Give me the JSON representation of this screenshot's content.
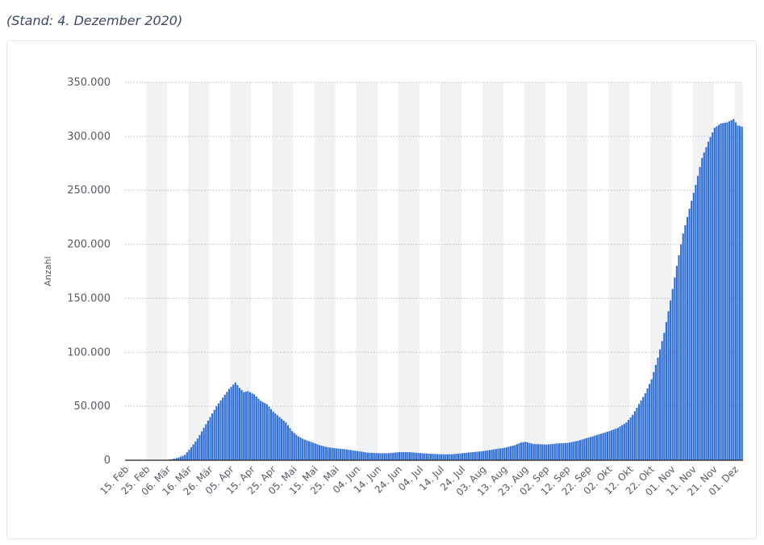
{
  "subtitle": "(Stand: 4. Dezember 2020)",
  "colors": {
    "bar": "#2f6fd6",
    "grid": "#b9bec5",
    "band": "#f1f2f4",
    "axis": "#222222"
  },
  "chart_data": {
    "type": "bar",
    "title": "",
    "xlabel": "",
    "ylabel": "Anzahl",
    "ylim": [
      0,
      350000
    ],
    "yticks": [
      {
        "value": 0,
        "label": "0"
      },
      {
        "value": 50000,
        "label": "50.000"
      },
      {
        "value": 100000,
        "label": "100.000"
      },
      {
        "value": 150000,
        "label": "150.000"
      },
      {
        "value": 200000,
        "label": "200.000"
      },
      {
        "value": 250000,
        "label": "250.000"
      },
      {
        "value": 300000,
        "label": "300.000"
      },
      {
        "value": 350000,
        "label": "350.000"
      }
    ],
    "grid": true,
    "x_start": "2020-02-15",
    "x_end": "2020-12-04",
    "xticks": [
      {
        "date": "2020-02-15",
        "label": "15. Feb"
      },
      {
        "date": "2020-02-25",
        "label": "25. Feb"
      },
      {
        "date": "2020-03-06",
        "label": "06. Mär"
      },
      {
        "date": "2020-03-16",
        "label": "16. Mär"
      },
      {
        "date": "2020-03-26",
        "label": "26. Mär"
      },
      {
        "date": "2020-04-05",
        "label": "05. Apr"
      },
      {
        "date": "2020-04-15",
        "label": "15. Apr"
      },
      {
        "date": "2020-04-25",
        "label": "25. Apr"
      },
      {
        "date": "2020-05-05",
        "label": "05. Mai"
      },
      {
        "date": "2020-05-15",
        "label": "15. Mai"
      },
      {
        "date": "2020-05-25",
        "label": "25. Mai"
      },
      {
        "date": "2020-06-04",
        "label": "04. Jun"
      },
      {
        "date": "2020-06-14",
        "label": "14. Jun"
      },
      {
        "date": "2020-06-24",
        "label": "24. Jun"
      },
      {
        "date": "2020-07-04",
        "label": "04. Jul"
      },
      {
        "date": "2020-07-14",
        "label": "14. Jul"
      },
      {
        "date": "2020-07-24",
        "label": "24. Jul"
      },
      {
        "date": "2020-08-03",
        "label": "03. Aug"
      },
      {
        "date": "2020-08-13",
        "label": "13. Aug"
      },
      {
        "date": "2020-08-23",
        "label": "23. Aug"
      },
      {
        "date": "2020-09-02",
        "label": "02. Sep"
      },
      {
        "date": "2020-09-12",
        "label": "12. Sep"
      },
      {
        "date": "2020-09-22",
        "label": "22. Sep"
      },
      {
        "date": "2020-10-02",
        "label": "02. Okt"
      },
      {
        "date": "2020-10-12",
        "label": "12. Okt"
      },
      {
        "date": "2020-10-22",
        "label": "22. Okt"
      },
      {
        "date": "2020-11-01",
        "label": "01. Nov"
      },
      {
        "date": "2020-11-11",
        "label": "11. Nov"
      },
      {
        "date": "2020-11-21",
        "label": "21. Nov"
      },
      {
        "date": "2020-12-01",
        "label": "01. Dez"
      }
    ],
    "series_anchors": [
      {
        "date": "2020-02-15",
        "value": 0
      },
      {
        "date": "2020-03-02",
        "value": 0
      },
      {
        "date": "2020-03-05",
        "value": 200
      },
      {
        "date": "2020-03-08",
        "value": 1000
      },
      {
        "date": "2020-03-11",
        "value": 2500
      },
      {
        "date": "2020-03-14",
        "value": 5000
      },
      {
        "date": "2020-03-17",
        "value": 12000
      },
      {
        "date": "2020-03-20",
        "value": 20000
      },
      {
        "date": "2020-03-23",
        "value": 30000
      },
      {
        "date": "2020-03-26",
        "value": 40000
      },
      {
        "date": "2020-03-29",
        "value": 50000
      },
      {
        "date": "2020-04-01",
        "value": 58000
      },
      {
        "date": "2020-04-04",
        "value": 66000
      },
      {
        "date": "2020-04-06",
        "value": 70000
      },
      {
        "date": "2020-04-07",
        "value": 72000
      },
      {
        "date": "2020-04-09",
        "value": 67000
      },
      {
        "date": "2020-04-11",
        "value": 63000
      },
      {
        "date": "2020-04-13",
        "value": 64000
      },
      {
        "date": "2020-04-16",
        "value": 61000
      },
      {
        "date": "2020-04-19",
        "value": 55000
      },
      {
        "date": "2020-04-22",
        "value": 52000
      },
      {
        "date": "2020-04-25",
        "value": 45000
      },
      {
        "date": "2020-04-28",
        "value": 40000
      },
      {
        "date": "2020-05-01",
        "value": 35000
      },
      {
        "date": "2020-05-04",
        "value": 27000
      },
      {
        "date": "2020-05-07",
        "value": 22000
      },
      {
        "date": "2020-05-10",
        "value": 19000
      },
      {
        "date": "2020-05-13",
        "value": 17000
      },
      {
        "date": "2020-05-17",
        "value": 14000
      },
      {
        "date": "2020-05-21",
        "value": 12000
      },
      {
        "date": "2020-05-25",
        "value": 11000
      },
      {
        "date": "2020-05-30",
        "value": 10000
      },
      {
        "date": "2020-06-04",
        "value": 8500
      },
      {
        "date": "2020-06-09",
        "value": 7000
      },
      {
        "date": "2020-06-14",
        "value": 6500
      },
      {
        "date": "2020-06-19",
        "value": 6500
      },
      {
        "date": "2020-06-24",
        "value": 7500
      },
      {
        "date": "2020-06-29",
        "value": 7500
      },
      {
        "date": "2020-07-04",
        "value": 6500
      },
      {
        "date": "2020-07-09",
        "value": 6000
      },
      {
        "date": "2020-07-14",
        "value": 5500
      },
      {
        "date": "2020-07-19",
        "value": 5500
      },
      {
        "date": "2020-07-24",
        "value": 6500
      },
      {
        "date": "2020-07-29",
        "value": 7500
      },
      {
        "date": "2020-08-03",
        "value": 8500
      },
      {
        "date": "2020-08-08",
        "value": 10000
      },
      {
        "date": "2020-08-13",
        "value": 11500
      },
      {
        "date": "2020-08-18",
        "value": 14000
      },
      {
        "date": "2020-08-21",
        "value": 16500
      },
      {
        "date": "2020-08-23",
        "value": 17000
      },
      {
        "date": "2020-08-27",
        "value": 15000
      },
      {
        "date": "2020-09-02",
        "value": 14500
      },
      {
        "date": "2020-09-07",
        "value": 15500
      },
      {
        "date": "2020-09-12",
        "value": 16000
      },
      {
        "date": "2020-09-17",
        "value": 18000
      },
      {
        "date": "2020-09-22",
        "value": 21000
      },
      {
        "date": "2020-09-27",
        "value": 24000
      },
      {
        "date": "2020-10-02",
        "value": 27000
      },
      {
        "date": "2020-10-06",
        "value": 30000
      },
      {
        "date": "2020-10-10",
        "value": 35000
      },
      {
        "date": "2020-10-13",
        "value": 42000
      },
      {
        "date": "2020-10-16",
        "value": 52000
      },
      {
        "date": "2020-10-19",
        "value": 62000
      },
      {
        "date": "2020-10-22",
        "value": 75000
      },
      {
        "date": "2020-10-25",
        "value": 95000
      },
      {
        "date": "2020-10-28",
        "value": 118000
      },
      {
        "date": "2020-10-31",
        "value": 148000
      },
      {
        "date": "2020-11-03",
        "value": 180000
      },
      {
        "date": "2020-11-06",
        "value": 210000
      },
      {
        "date": "2020-11-09",
        "value": 233000
      },
      {
        "date": "2020-11-12",
        "value": 255000
      },
      {
        "date": "2020-11-15",
        "value": 280000
      },
      {
        "date": "2020-11-18",
        "value": 295000
      },
      {
        "date": "2020-11-21",
        "value": 308000
      },
      {
        "date": "2020-11-24",
        "value": 312000
      },
      {
        "date": "2020-11-27",
        "value": 313000
      },
      {
        "date": "2020-11-30",
        "value": 316000
      },
      {
        "date": "2020-12-02",
        "value": 310000
      },
      {
        "date": "2020-12-04",
        "value": 309000
      }
    ]
  }
}
